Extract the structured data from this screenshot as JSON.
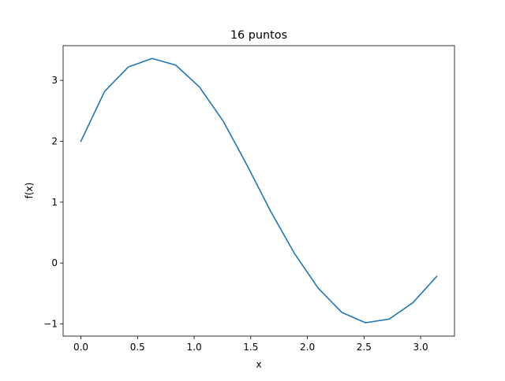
{
  "chart_data": {
    "type": "line",
    "title": "16 puntos",
    "xlabel": "x",
    "ylabel": "f(x)",
    "xlim": [
      -0.157,
      3.299
    ],
    "ylim": [
      -1.2,
      3.57
    ],
    "grid": false,
    "x_ticks": [
      0.0,
      0.5,
      1.0,
      1.5,
      2.0,
      2.5,
      3.0
    ],
    "x_tick_labels": [
      "0.0",
      "0.5",
      "1.0",
      "1.5",
      "2.0",
      "2.5",
      "3.0"
    ],
    "y_ticks": [
      -1,
      0,
      1,
      2,
      3
    ],
    "y_tick_labels": [
      "−1",
      "0",
      "1",
      "2",
      "3"
    ],
    "series": [
      {
        "color": "#1f77b4",
        "x": [
          0.0,
          0.2094,
          0.4189,
          0.6283,
          0.8378,
          1.0472,
          1.2566,
          1.4661,
          1.6755,
          1.885,
          2.0944,
          2.3038,
          2.5133,
          2.7227,
          2.9322,
          3.1416
        ],
        "y": [
          2.0,
          2.82,
          3.22,
          3.36,
          3.25,
          2.89,
          2.33,
          1.61,
          0.85,
          0.16,
          -0.41,
          -0.81,
          -0.98,
          -0.92,
          -0.65,
          -0.22
        ]
      }
    ]
  }
}
